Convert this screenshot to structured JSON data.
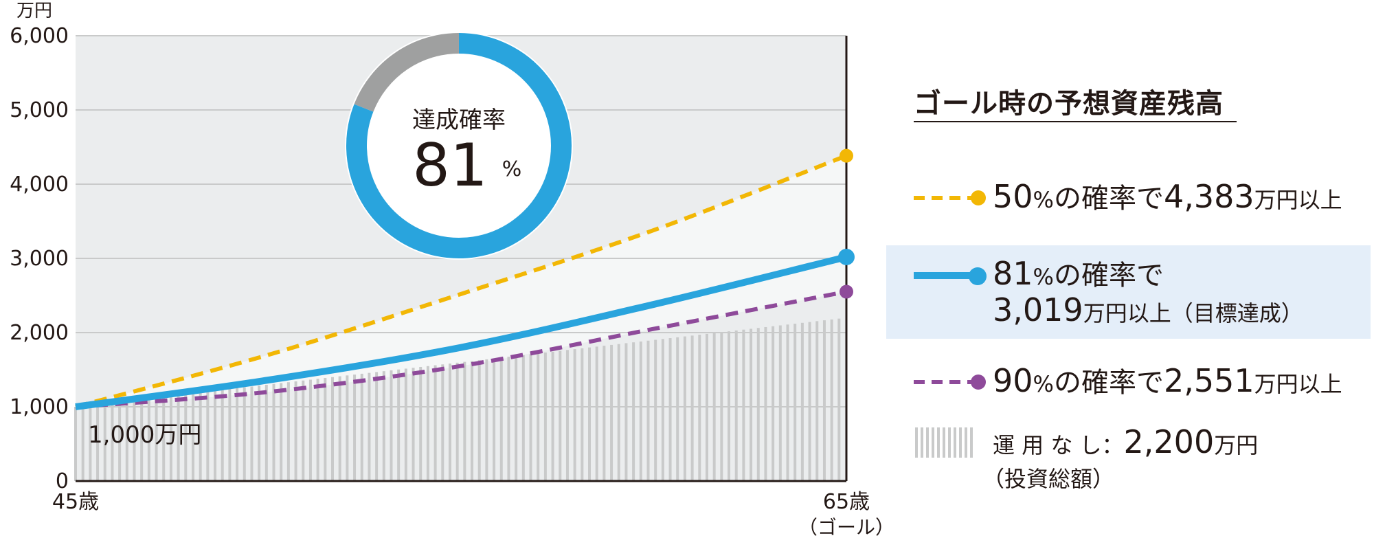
{
  "chart_data": {
    "type": "line",
    "y_unit": "万円",
    "ylim": [
      0,
      6000
    ],
    "yticks": [
      "0",
      "1,000",
      "2,000",
      "3,000",
      "4,000",
      "5,000",
      "6,000"
    ],
    "x_start_label": "45歳",
    "x_end_label": "65歳",
    "x_end_sublabel": "（ゴール）",
    "start_value_label": "1,000万円",
    "start_value": 1000,
    "grid": true,
    "series": [
      {
        "name": "50%の確率で4,383万円以上",
        "color": "#f2b705",
        "style": "dashed",
        "points": [
          [
            45,
            1000
          ],
          [
            50,
            1700
          ],
          [
            55,
            2520
          ],
          [
            60,
            3380
          ],
          [
            65,
            4383
          ]
        ]
      },
      {
        "name": "81%の確率で3,019万円以上（目標達成）",
        "color": "#29a4dd",
        "style": "solid",
        "points": [
          [
            45,
            1000
          ],
          [
            50,
            1360
          ],
          [
            55,
            1800
          ],
          [
            60,
            2380
          ],
          [
            65,
            3019
          ]
        ]
      },
      {
        "name": "90%の確率で2,551万円以上",
        "color": "#8e4a9a",
        "style": "dashed",
        "points": [
          [
            45,
            1000
          ],
          [
            50,
            1200
          ],
          [
            55,
            1550
          ],
          [
            60,
            2050
          ],
          [
            65,
            2551
          ]
        ]
      },
      {
        "name": "運用なし：2,200万円（投資総額）",
        "color": "#c9caca",
        "style": "bars",
        "points": [
          [
            45,
            1000
          ],
          [
            65,
            2200
          ]
        ]
      }
    ],
    "donut": {
      "label": "達成確率",
      "value": 81,
      "unit": "%",
      "color": "#29a4dd",
      "remainder_color": "#9fa0a0"
    }
  },
  "legend": {
    "title": "ゴール時の予想資産残高",
    "items": [
      {
        "pct": "50",
        "pct_unit": "%",
        "text1": "の確率で",
        "amount": "4,383",
        "text2": "万円以上",
        "color": "#f2b705"
      },
      {
        "pct": "81",
        "pct_unit": "%",
        "text1": "の確率で",
        "amount": "3,019",
        "text2": "万円以上",
        "note": "（目標達成）",
        "color": "#29a4dd"
      },
      {
        "pct": "90",
        "pct_unit": "%",
        "text1": "の確率で",
        "amount": "2,551",
        "text2": "万円以上",
        "color": "#8e4a9a"
      },
      {
        "label": "運 用 な し：",
        "amount": "2,200",
        "unit": "万円",
        "note": "（投資総額）",
        "color": "#c9caca"
      }
    ]
  },
  "colors": {
    "plot_bg": "#ebedee",
    "band": "#f5f7f7",
    "grid": "#c9caca",
    "axis": "#231815",
    "highlight": "#e4eef9"
  }
}
